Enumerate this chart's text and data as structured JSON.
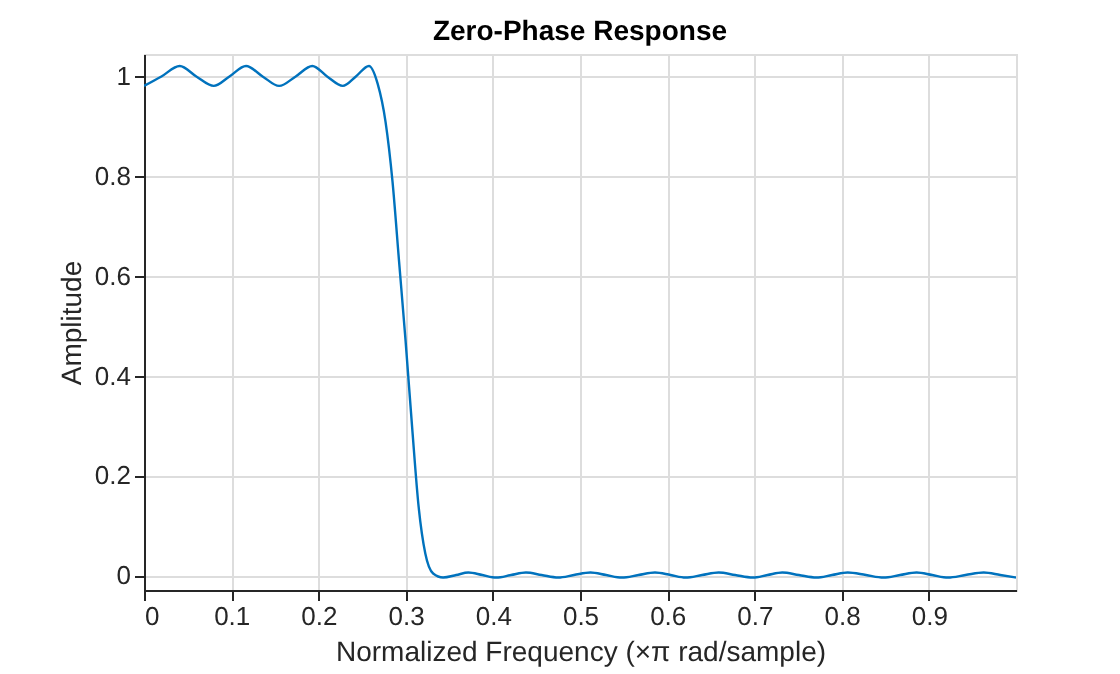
{
  "chart_data": {
    "type": "line",
    "title": "Zero-Phase Response",
    "xlabel": "Normalized Frequency  (×π rad/sample)",
    "ylabel": "Amplitude",
    "x": [
      0,
      0.02,
      0.041,
      0.06,
      0.08,
      0.098,
      0.117,
      0.136,
      0.155,
      0.174,
      0.193,
      0.21,
      0.228,
      0.243,
      0.258,
      0.268,
      0.277,
      0.285,
      0.2925,
      0.3,
      0.3075,
      0.315,
      0.3226,
      0.3316,
      0.343,
      0.358,
      0.372,
      0.388,
      0.404,
      0.421,
      0.438,
      0.456,
      0.475,
      0.493,
      0.512,
      0.53,
      0.548,
      0.567,
      0.586,
      0.604,
      0.621,
      0.64,
      0.659,
      0.678,
      0.698,
      0.715,
      0.732,
      0.751,
      0.771,
      0.789,
      0.807,
      0.828,
      0.848,
      0.867,
      0.886,
      0.904,
      0.922,
      0.942,
      0.963,
      0.982,
      1.0
    ],
    "series": [
      {
        "color": "#0072bd",
        "values": [
          0.981,
          1.0,
          1.021,
          1.0,
          0.981,
          1.0,
          1.021,
          1.0,
          0.981,
          1.0,
          1.021,
          1.0,
          0.981,
          1.0,
          1.021,
          0.985,
          0.909,
          0.789,
          0.629,
          0.469,
          0.296,
          0.136,
          0.043,
          0.003,
          -0.005,
          0,
          0.005,
          0,
          -0.005,
          0,
          0.005,
          0,
          -0.005,
          0,
          0.005,
          0,
          -0.005,
          0,
          0.005,
          0,
          -0.005,
          0,
          0.005,
          0,
          -0.005,
          0,
          0.005,
          0,
          -0.005,
          0,
          0.005,
          0,
          -0.005,
          0,
          0.005,
          0,
          -0.005,
          0,
          0.005,
          0,
          -0.005
        ]
      }
    ],
    "xlim": [
      0,
      1.0
    ],
    "xticks": [
      0,
      0.1,
      0.2,
      0.3,
      0.4,
      0.5,
      0.6,
      0.7,
      0.8,
      0.9
    ],
    "ylim": [
      -0.03,
      1.045
    ],
    "yticks": [
      0,
      0.2,
      0.4,
      0.6,
      0.8,
      1
    ],
    "grid": true
  }
}
